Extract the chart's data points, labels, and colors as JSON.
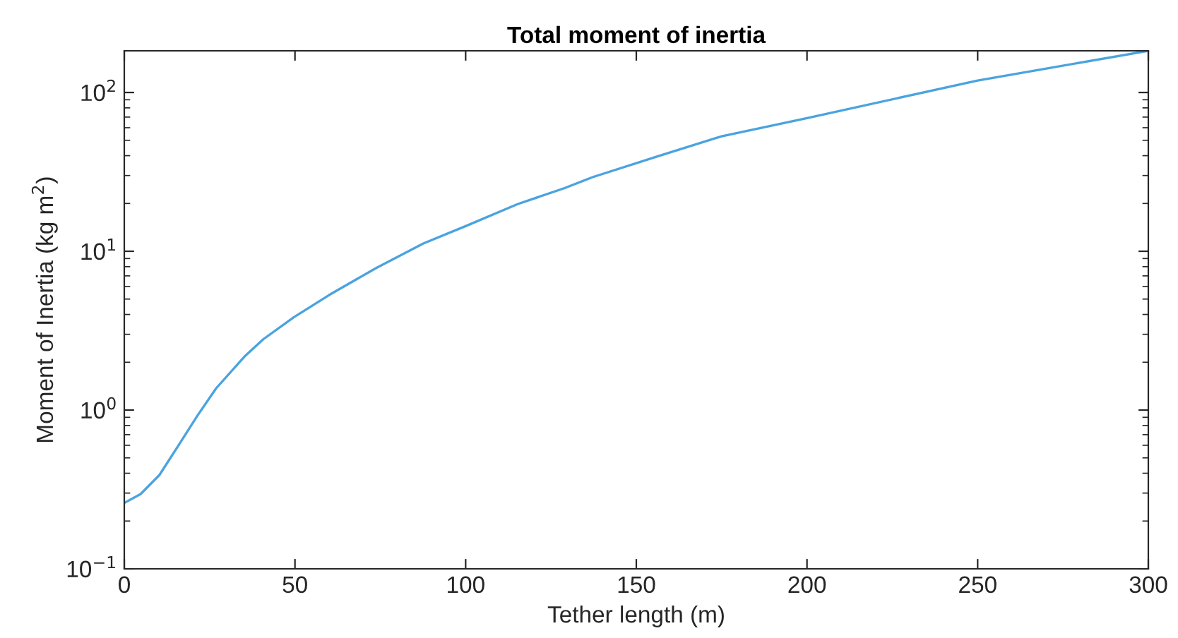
{
  "chart_data": {
    "type": "line",
    "title": "Total moment of inertia",
    "xlabel": "Tether length (m)",
    "ylabel": "Moment of Inertia (kg m$^{2}$)",
    "x": [
      0,
      4.8,
      10.3,
      15.9,
      21.4,
      26.9,
      35.2,
      40.7,
      49.7,
      60,
      73.8,
      87.6,
      100,
      115.2,
      129,
      137.2,
      156.5,
      175,
      200,
      250,
      300
    ],
    "series": [
      {
        "color": "#4aa3df",
        "values": [
          0.26,
          0.296,
          0.39,
          0.6,
          0.92,
          1.37,
          2.17,
          2.79,
          3.85,
          5.3,
          7.85,
          11.2,
          14.4,
          19.8,
          25,
          29.3,
          39.8,
          53,
          68.9,
          119,
          183
        ]
      }
    ],
    "log": "y",
    "xlim": [
      0,
      300
    ],
    "ylim": [
      0.1,
      183
    ],
    "xticks": [
      0,
      50,
      100,
      150,
      200,
      250,
      300
    ],
    "yticks": [
      {
        "value": 0.1,
        "label": "10$^{−1}$"
      },
      {
        "value": 1,
        "label": "10$^{0}$"
      },
      {
        "value": 10,
        "label": "10$^{1}$"
      },
      {
        "value": 100,
        "label": "10$^{2}$"
      }
    ],
    "grid": false,
    "marker": "none",
    "line_style": "solid"
  }
}
